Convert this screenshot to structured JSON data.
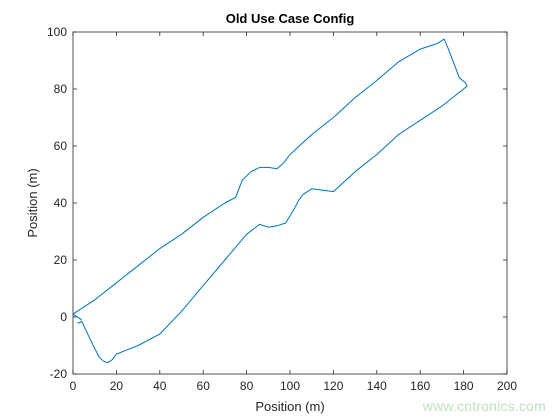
{
  "chart_data": {
    "type": "line",
    "title": "Old Use Case Config",
    "xlabel": "Position (m)",
    "ylabel": "Position (m)",
    "xlim": [
      0,
      200
    ],
    "ylim": [
      -20,
      100
    ],
    "xticks": [
      0,
      20,
      40,
      60,
      80,
      100,
      120,
      140,
      160,
      180,
      200
    ],
    "yticks": [
      -20,
      0,
      20,
      40,
      60,
      80,
      100
    ],
    "grid": false,
    "series": [
      {
        "color": "#0072bd",
        "x": [
          4,
          0,
          10,
          20,
          30,
          40,
          50,
          60,
          70,
          75,
          76,
          78,
          82,
          86,
          90,
          94,
          97,
          100,
          110,
          120,
          130,
          140,
          150,
          160,
          168,
          171,
          173,
          176,
          178,
          181,
          181.5,
          180,
          170,
          160,
          150,
          140,
          130,
          120,
          110,
          106,
          104,
          102,
          98,
          94,
          90,
          86,
          80,
          70,
          60,
          50,
          40,
          30,
          20,
          18,
          16,
          14,
          12,
          8,
          5,
          4,
          3,
          2
        ],
        "y": [
          -1,
          1,
          6,
          12,
          18,
          24,
          29,
          35,
          40,
          42,
          44,
          48,
          51,
          52.5,
          52.5,
          52,
          54,
          57,
          64,
          70,
          77,
          83,
          89.5,
          94,
          96,
          97.5,
          94,
          88,
          84,
          82,
          81,
          80,
          74,
          69,
          64,
          57,
          51,
          44,
          45,
          43,
          41,
          38,
          33,
          32,
          31.5,
          32.5,
          29,
          20,
          11,
          2,
          -6,
          -10,
          -13,
          -15,
          -16,
          -15.5,
          -14,
          -8,
          -3,
          -1.5,
          -2,
          -2
        ]
      }
    ]
  },
  "watermark": "www.cntronics.com",
  "colors": {
    "line": "#0072bd",
    "axis": "#262626",
    "background": "#ffffff"
  }
}
